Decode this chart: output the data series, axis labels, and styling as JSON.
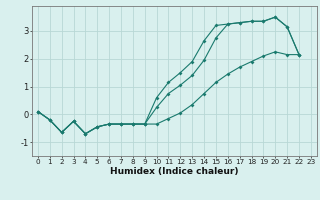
{
  "xlabel": "Humidex (Indice chaleur)",
  "background_color": "#d9f0ee",
  "grid_color": "#b8d8d5",
  "line_color": "#1a7a6e",
  "xlim": [
    -0.5,
    23.5
  ],
  "ylim": [
    -1.5,
    3.9
  ],
  "yticks": [
    -1,
    0,
    1,
    2,
    3
  ],
  "x_ticks": [
    0,
    1,
    2,
    3,
    4,
    5,
    6,
    7,
    8,
    9,
    10,
    11,
    12,
    13,
    14,
    15,
    16,
    17,
    18,
    19,
    20,
    21,
    22,
    23
  ],
  "series1_x": [
    0,
    1,
    2,
    3,
    4,
    5,
    6,
    7,
    8,
    9,
    10,
    11,
    12,
    13,
    14,
    15,
    16,
    17,
    18,
    19,
    20,
    21,
    22
  ],
  "series1_y": [
    0.1,
    -0.2,
    -0.65,
    -0.25,
    -0.7,
    -0.45,
    -0.35,
    -0.35,
    -0.35,
    -0.35,
    0.25,
    0.75,
    1.05,
    1.4,
    1.95,
    2.75,
    3.25,
    3.3,
    3.35,
    3.35,
    3.5,
    3.15,
    2.15
  ],
  "series2_x": [
    0,
    1,
    2,
    3,
    4,
    5,
    6,
    7,
    8,
    9,
    10,
    11,
    12,
    13,
    14,
    15,
    16,
    17,
    18,
    19,
    20,
    21,
    22
  ],
  "series2_y": [
    0.1,
    -0.2,
    -0.65,
    -0.25,
    -0.7,
    -0.45,
    -0.35,
    -0.35,
    -0.35,
    -0.35,
    0.6,
    1.15,
    1.5,
    1.9,
    2.65,
    3.2,
    3.25,
    3.3,
    3.35,
    3.35,
    3.5,
    3.15,
    2.15
  ],
  "series3_x": [
    0,
    1,
    2,
    3,
    4,
    5,
    6,
    7,
    8,
    9,
    10,
    11,
    12,
    13,
    14,
    15,
    16,
    17,
    18,
    19,
    20,
    21,
    22
  ],
  "series3_y": [
    0.1,
    -0.2,
    -0.65,
    -0.25,
    -0.7,
    -0.45,
    -0.35,
    -0.35,
    -0.35,
    -0.35,
    -0.35,
    -0.15,
    0.05,
    0.35,
    0.75,
    1.15,
    1.45,
    1.7,
    1.9,
    2.1,
    2.25,
    2.15,
    2.15
  ],
  "tick_fontsize": 5.2,
  "label_fontsize": 6.5,
  "marker_size": 2.0,
  "line_width": 0.8
}
